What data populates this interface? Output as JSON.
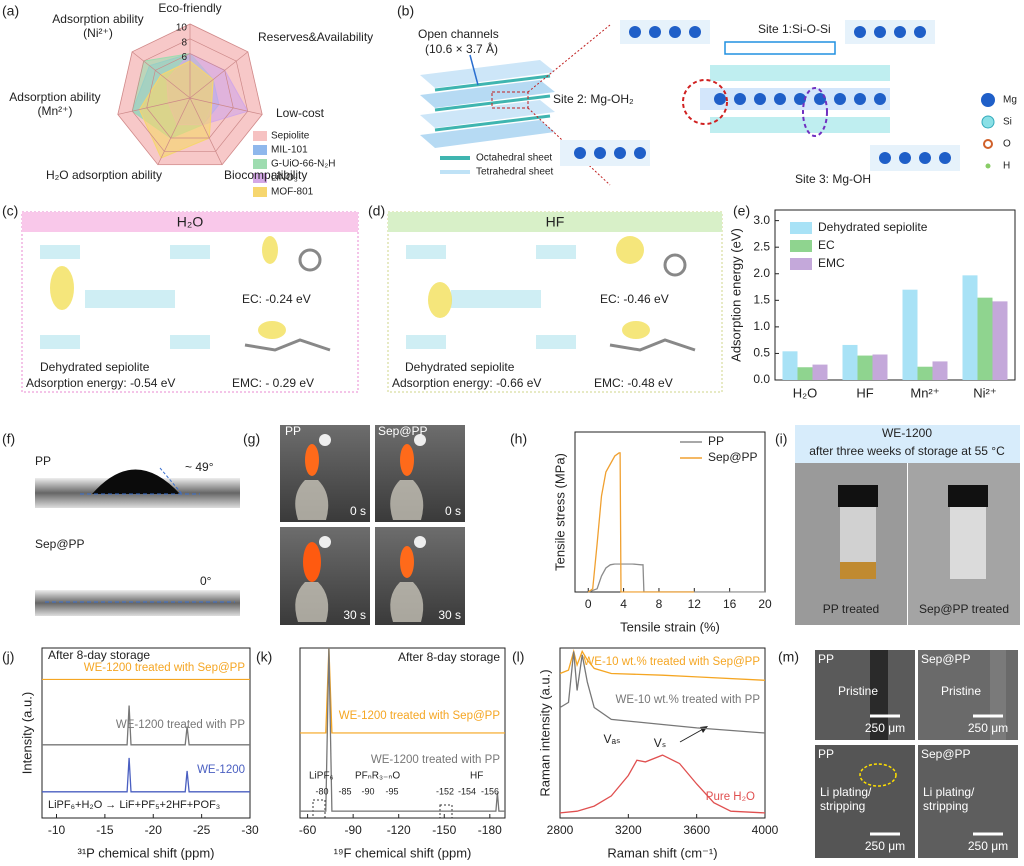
{
  "panel_labels": [
    "(a)",
    "(b)",
    "(c)",
    "(d)",
    "(e)",
    "(f)",
    "(g)",
    "(h)",
    "(i)",
    "(j)",
    "(k)",
    "(l)",
    "(m)"
  ],
  "chart_data": [
    {
      "type": "radar",
      "axes": [
        "Eco-friendly",
        "Reserves&Availability",
        "Low-cost",
        "Biocompatibility",
        "H₂O adsorption ability",
        "Adsorption ability (Mn²⁺)",
        "Adsorption ability (Ni²⁺)"
      ],
      "rlim": [
        0,
        10
      ],
      "rticks": [
        6,
        8,
        10
      ],
      "series": [
        {
          "name": "Sepiolite",
          "color": "#f6c2c2",
          "values": [
            10,
            10,
            10,
            10,
            10,
            10,
            10
          ]
        },
        {
          "name": "MIL-101",
          "color": "#8fb8ec",
          "values": [
            6,
            4,
            4,
            4,
            6,
            8,
            7
          ]
        },
        {
          "name": "G-UiO-66-N₂H",
          "color": "#9edcb0",
          "values": [
            6,
            4,
            3,
            4,
            6,
            8,
            8
          ]
        },
        {
          "name": "LiNO₃",
          "color": "#d4a8e6",
          "values": [
            6,
            6,
            8,
            4,
            4,
            3,
            4
          ]
        },
        {
          "name": "MOF-801",
          "color": "#f6d66e",
          "values": [
            5,
            4,
            3,
            6,
            9,
            7,
            5
          ]
        }
      ]
    },
    {
      "type": "bar",
      "ylabel": "Adsorption energy (eV)",
      "categories": [
        "H₂O",
        "HF",
        "Mn²⁺",
        "Ni²⁺"
      ],
      "ylim": [
        0,
        3.2
      ],
      "yticks": [
        {
          "value": 0,
          "label": "0.0"
        },
        0.5,
        {
          "value": 1,
          "label": "1.0"
        },
        1.5,
        {
          "value": 2,
          "label": "2.0"
        },
        2.5,
        {
          "value": 3,
          "label": "3.0"
        }
      ],
      "series": [
        {
          "name": "Dehydrated sepiolite",
          "color": "#a8e2f6",
          "values": [
            0.54,
            0.66,
            1.7,
            1.97
          ]
        },
        {
          "name": "EC",
          "color": "#8fd48f",
          "values": [
            0.24,
            0.46,
            0.25,
            1.55
          ]
        },
        {
          "name": "EMC",
          "color": "#c4a8da",
          "values": [
            0.29,
            0.48,
            0.35,
            1.48
          ]
        }
      ]
    },
    {
      "type": "line",
      "xlabel": "Tensile strain (%)",
      "ylabel": "Tensile stress (MPa)",
      "xlim": [
        -1.5,
        20
      ],
      "xticks": [
        0,
        4,
        8,
        12,
        16,
        20
      ],
      "ylim": [
        0,
        100
      ],
      "series": [
        {
          "name": "PP",
          "color": "#8c8c8c",
          "x": [
            0,
            1,
            1.5,
            2,
            2.5,
            3,
            5,
            6,
            6.2,
            6.3,
            20
          ],
          "values": [
            0,
            2,
            10,
            15,
            17,
            17.5,
            17.5,
            17,
            17,
            0,
            0
          ]
        },
        {
          "name": "Sep@PP",
          "color": "#f0a030",
          "x": [
            0,
            0.5,
            1,
            1.5,
            2,
            3,
            3.5,
            3.6,
            3.7,
            4,
            12
          ],
          "values": [
            0,
            2,
            30,
            60,
            75,
            85,
            87,
            87,
            0,
            0,
            0
          ]
        }
      ]
    },
    {
      "type": "line",
      "xlabel": "³¹P chemical shift (ppm)",
      "ylabel": "Intensity (a.u.)",
      "xlim": [
        -8.5,
        -30
      ],
      "xticks": [
        -10,
        -15,
        -20,
        -25,
        -30
      ],
      "ylim": [
        0,
        6.5
      ],
      "annotations": [
        "After 8-day storage",
        "LiPF₆+H₂O → LiF+PF₅+2HF+POF₃"
      ],
      "series": [
        {
          "name": "WE-1200",
          "color": "#4a5fc1",
          "x": [
            -8.5,
            -17.3,
            -17.5,
            -17.7,
            -23.3,
            -23.5,
            -23.7,
            -30
          ],
          "values": [
            1,
            1,
            2.3,
            1,
            1,
            1.8,
            1,
            1
          ]
        },
        {
          "name": "WE-1200 treated with PP",
          "color": "#777777",
          "x": [
            -8.5,
            -17.3,
            -17.5,
            -17.7,
            -23.3,
            -23.5,
            -23.7,
            -30
          ],
          "values": [
            2.8,
            2.8,
            4.3,
            2.8,
            2.8,
            3.5,
            2.8,
            2.8
          ]
        },
        {
          "name": "WE-1200 treated with Sep@PP",
          "color": "#f5a623",
          "x": [
            -8.5,
            -30
          ],
          "values": [
            5.3,
            5.3
          ]
        }
      ]
    },
    {
      "type": "line",
      "xlabel": "¹⁹F chemical shift (ppm)",
      "xlim": [
        -55,
        -190
      ],
      "xticks": [
        -60,
        -90,
        -120,
        -150,
        -180
      ],
      "ylim": [
        0,
        10
      ],
      "annotations": [
        "After 8-day storage",
        "LiPF₆",
        "PFₙR₃₋ₙO",
        "HF",
        "-80",
        "-85",
        "-90",
        "-95",
        "-152",
        "-154",
        "-156"
      ],
      "series": [
        {
          "name": "WE-1200 treated with Sep@PP",
          "color": "#f5a623",
          "x": [
            -55,
            -72,
            -74,
            -76,
            -190
          ],
          "values": [
            5,
            5,
            10,
            5,
            5
          ]
        },
        {
          "name": "WE-1200 treated with PP",
          "color": "#777777",
          "x": [
            -55,
            -72,
            -74,
            -76,
            -184,
            -185,
            -186,
            -190
          ],
          "values": [
            0.4,
            0.4,
            10,
            0.4,
            0.4,
            1.5,
            0.4,
            0.4
          ]
        }
      ]
    },
    {
      "type": "line",
      "xlabel": "Raman shift (cm⁻¹)",
      "ylabel": "Raman intensity (a.u.)",
      "xlim": [
        2800,
        4000
      ],
      "xticks": [
        2800,
        3200,
        3600,
        4000
      ],
      "ylim": [
        0,
        10
      ],
      "annotations": [
        "Vₐₛ",
        "Vₛ"
      ],
      "series": [
        {
          "name": "WE-10 wt.% treated with Sep@PP",
          "color": "#f5a623",
          "x": [
            2800,
            2850,
            2880,
            2900,
            2930,
            2960,
            3000,
            3100,
            3400,
            3600,
            4000
          ],
          "values": [
            8.5,
            8.7,
            9.8,
            9,
            9.8,
            9.3,
            8.8,
            8.5,
            8.4,
            8.3,
            8.1
          ]
        },
        {
          "name": "WE-10 wt.% treated with PP",
          "color": "#777777",
          "x": [
            2800,
            2850,
            2880,
            2900,
            2930,
            2960,
            3000,
            3100,
            3400,
            3600,
            4000
          ],
          "values": [
            6.5,
            6.8,
            9.8,
            7.5,
            9.6,
            8,
            6.5,
            5.8,
            5.5,
            5.3,
            5
          ]
        },
        {
          "name": "Pure H₂O",
          "color": "#e05050",
          "x": [
            2800,
            2900,
            3000,
            3100,
            3200,
            3250,
            3300,
            3400,
            3500,
            3600,
            3700,
            3800,
            4000
          ],
          "values": [
            0.3,
            0.4,
            0.7,
            1.3,
            2.5,
            3.4,
            3.3,
            3.7,
            3.2,
            2,
            0.9,
            0.4,
            0.3
          ]
        }
      ]
    }
  ],
  "panel_b": {
    "channel_label": "Open channels",
    "channel_size": "(10.6 × 3.7 Å)",
    "octahedral": "Octahedral sheet",
    "tetrahedral": "Tetrahedral sheet",
    "site1": "Site 1:Si-O-Si",
    "site2": "Site 2: Mg-OH₂",
    "site3": "Site 3: Mg-OH",
    "atoms": [
      "Mg",
      "Si",
      "O",
      "H"
    ]
  },
  "panel_c": {
    "title": "H₂O",
    "ec": "EC: -0.24 eV",
    "emc": "EMC: - 0.29 eV",
    "substrate": "Dehydrated sepiolite",
    "energy": "Adsorption energy: -0.54 eV"
  },
  "panel_d": {
    "title": "HF",
    "ec": "EC: -0.46 eV",
    "emc": "EMC: -0.48 eV",
    "substrate": "Dehydrated sepiolite",
    "energy": "Adsorption energy: -0.66 eV"
  },
  "panel_f": {
    "top_label": "PP",
    "angle_top": "~ 49°",
    "bottom_label": "Sep@PP",
    "angle_bottom": "0°"
  },
  "panel_g": {
    "labels": [
      "PP",
      "Sep@PP"
    ],
    "times": [
      "0 s",
      "0 s",
      "30 s",
      "30 s"
    ]
  },
  "panel_i": {
    "title": "WE-1200",
    "subtitle": "after three weeks of storage at 55 °C",
    "captions": [
      "PP treated",
      "Sep@PP treated"
    ]
  },
  "panel_m": {
    "tiles": [
      {
        "sample": "PP",
        "state": "Pristine",
        "scale": "250 μm"
      },
      {
        "sample": "Sep@PP",
        "state": "Pristine",
        "scale": "250 μm"
      },
      {
        "sample": "PP",
        "state": "Li plating/ stripping",
        "scale": "250 μm"
      },
      {
        "sample": "Sep@PP",
        "state": "Li plating/ stripping",
        "scale": "250 μm"
      }
    ]
  }
}
